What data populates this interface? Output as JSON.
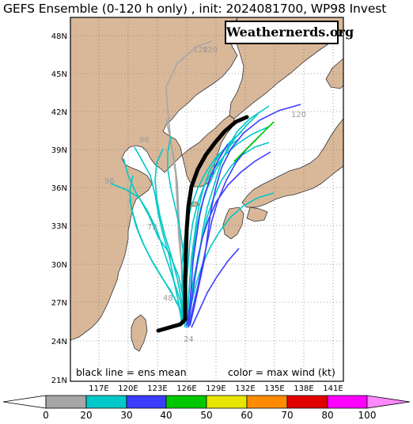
{
  "title": "GEFS Ensemble (0-120 h only) , init: 2024081700, WP98 Invest",
  "watermark": "Weathernerds.org",
  "map": {
    "lat_labels": [
      "48N",
      "45N",
      "42N",
      "39N",
      "36N",
      "33N",
      "30N",
      "27N",
      "24N",
      "21N"
    ],
    "lon_labels": [
      "117E",
      "120E",
      "123E",
      "126E",
      "129E",
      "132E",
      "135E",
      "138E",
      "141E"
    ],
    "lat_range": [
      21,
      49.5
    ],
    "lon_range": [
      114,
      142
    ],
    "land_color": "#d9b89a",
    "ocean_color": "#ffffff",
    "hour_labels": [
      "120",
      "120",
      "120",
      "96",
      "96",
      "72",
      "48",
      "24"
    ]
  },
  "legend": {
    "left_text": "black line = ens mean",
    "right_text": "color = max wind (kt)"
  },
  "colorbar": {
    "ticks": [
      "0",
      "20",
      "30",
      "40",
      "50",
      "60",
      "70",
      "80",
      "100"
    ],
    "colors": [
      "#ffffff",
      "#a6a6a6",
      "#00c8c8",
      "#3c3cff",
      "#00c800",
      "#e6e600",
      "#ff8c00",
      "#e00000",
      "#ff00ff"
    ]
  }
}
